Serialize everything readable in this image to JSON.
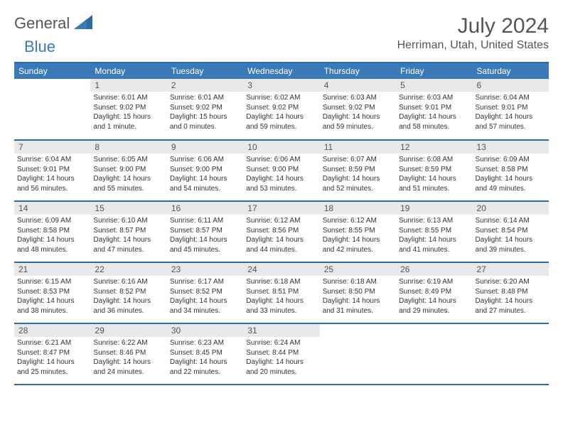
{
  "logo": {
    "text1": "General",
    "text2": "Blue"
  },
  "header": {
    "title": "July 2024",
    "location": "Herriman, Utah, United States"
  },
  "colors": {
    "header_bg": "#3a7ab8",
    "header_text": "#ffffff",
    "border": "#2b6ca3",
    "daynum_bg": "#e9e9e9",
    "text_dark": "#333333",
    "text_grey": "#555555"
  },
  "day_labels": [
    "Sunday",
    "Monday",
    "Tuesday",
    "Wednesday",
    "Thursday",
    "Friday",
    "Saturday"
  ],
  "weeks": [
    [
      null,
      {
        "n": "1",
        "sr": "Sunrise: 6:01 AM",
        "ss": "Sunset: 9:02 PM",
        "dl": "Daylight: 15 hours and 1 minute."
      },
      {
        "n": "2",
        "sr": "Sunrise: 6:01 AM",
        "ss": "Sunset: 9:02 PM",
        "dl": "Daylight: 15 hours and 0 minutes."
      },
      {
        "n": "3",
        "sr": "Sunrise: 6:02 AM",
        "ss": "Sunset: 9:02 PM",
        "dl": "Daylight: 14 hours and 59 minutes."
      },
      {
        "n": "4",
        "sr": "Sunrise: 6:03 AM",
        "ss": "Sunset: 9:02 PM",
        "dl": "Daylight: 14 hours and 59 minutes."
      },
      {
        "n": "5",
        "sr": "Sunrise: 6:03 AM",
        "ss": "Sunset: 9:01 PM",
        "dl": "Daylight: 14 hours and 58 minutes."
      },
      {
        "n": "6",
        "sr": "Sunrise: 6:04 AM",
        "ss": "Sunset: 9:01 PM",
        "dl": "Daylight: 14 hours and 57 minutes."
      }
    ],
    [
      {
        "n": "7",
        "sr": "Sunrise: 6:04 AM",
        "ss": "Sunset: 9:01 PM",
        "dl": "Daylight: 14 hours and 56 minutes."
      },
      {
        "n": "8",
        "sr": "Sunrise: 6:05 AM",
        "ss": "Sunset: 9:00 PM",
        "dl": "Daylight: 14 hours and 55 minutes."
      },
      {
        "n": "9",
        "sr": "Sunrise: 6:06 AM",
        "ss": "Sunset: 9:00 PM",
        "dl": "Daylight: 14 hours and 54 minutes."
      },
      {
        "n": "10",
        "sr": "Sunrise: 6:06 AM",
        "ss": "Sunset: 9:00 PM",
        "dl": "Daylight: 14 hours and 53 minutes."
      },
      {
        "n": "11",
        "sr": "Sunrise: 6:07 AM",
        "ss": "Sunset: 8:59 PM",
        "dl": "Daylight: 14 hours and 52 minutes."
      },
      {
        "n": "12",
        "sr": "Sunrise: 6:08 AM",
        "ss": "Sunset: 8:59 PM",
        "dl": "Daylight: 14 hours and 51 minutes."
      },
      {
        "n": "13",
        "sr": "Sunrise: 6:09 AM",
        "ss": "Sunset: 8:58 PM",
        "dl": "Daylight: 14 hours and 49 minutes."
      }
    ],
    [
      {
        "n": "14",
        "sr": "Sunrise: 6:09 AM",
        "ss": "Sunset: 8:58 PM",
        "dl": "Daylight: 14 hours and 48 minutes."
      },
      {
        "n": "15",
        "sr": "Sunrise: 6:10 AM",
        "ss": "Sunset: 8:57 PM",
        "dl": "Daylight: 14 hours and 47 minutes."
      },
      {
        "n": "16",
        "sr": "Sunrise: 6:11 AM",
        "ss": "Sunset: 8:57 PM",
        "dl": "Daylight: 14 hours and 45 minutes."
      },
      {
        "n": "17",
        "sr": "Sunrise: 6:12 AM",
        "ss": "Sunset: 8:56 PM",
        "dl": "Daylight: 14 hours and 44 minutes."
      },
      {
        "n": "18",
        "sr": "Sunrise: 6:12 AM",
        "ss": "Sunset: 8:55 PM",
        "dl": "Daylight: 14 hours and 42 minutes."
      },
      {
        "n": "19",
        "sr": "Sunrise: 6:13 AM",
        "ss": "Sunset: 8:55 PM",
        "dl": "Daylight: 14 hours and 41 minutes."
      },
      {
        "n": "20",
        "sr": "Sunrise: 6:14 AM",
        "ss": "Sunset: 8:54 PM",
        "dl": "Daylight: 14 hours and 39 minutes."
      }
    ],
    [
      {
        "n": "21",
        "sr": "Sunrise: 6:15 AM",
        "ss": "Sunset: 8:53 PM",
        "dl": "Daylight: 14 hours and 38 minutes."
      },
      {
        "n": "22",
        "sr": "Sunrise: 6:16 AM",
        "ss": "Sunset: 8:52 PM",
        "dl": "Daylight: 14 hours and 36 minutes."
      },
      {
        "n": "23",
        "sr": "Sunrise: 6:17 AM",
        "ss": "Sunset: 8:52 PM",
        "dl": "Daylight: 14 hours and 34 minutes."
      },
      {
        "n": "24",
        "sr": "Sunrise: 6:18 AM",
        "ss": "Sunset: 8:51 PM",
        "dl": "Daylight: 14 hours and 33 minutes."
      },
      {
        "n": "25",
        "sr": "Sunrise: 6:18 AM",
        "ss": "Sunset: 8:50 PM",
        "dl": "Daylight: 14 hours and 31 minutes."
      },
      {
        "n": "26",
        "sr": "Sunrise: 6:19 AM",
        "ss": "Sunset: 8:49 PM",
        "dl": "Daylight: 14 hours and 29 minutes."
      },
      {
        "n": "27",
        "sr": "Sunrise: 6:20 AM",
        "ss": "Sunset: 8:48 PM",
        "dl": "Daylight: 14 hours and 27 minutes."
      }
    ],
    [
      {
        "n": "28",
        "sr": "Sunrise: 6:21 AM",
        "ss": "Sunset: 8:47 PM",
        "dl": "Daylight: 14 hours and 25 minutes."
      },
      {
        "n": "29",
        "sr": "Sunrise: 6:22 AM",
        "ss": "Sunset: 8:46 PM",
        "dl": "Daylight: 14 hours and 24 minutes."
      },
      {
        "n": "30",
        "sr": "Sunrise: 6:23 AM",
        "ss": "Sunset: 8:45 PM",
        "dl": "Daylight: 14 hours and 22 minutes."
      },
      {
        "n": "31",
        "sr": "Sunrise: 6:24 AM",
        "ss": "Sunset: 8:44 PM",
        "dl": "Daylight: 14 hours and 20 minutes."
      },
      null,
      null,
      null
    ]
  ]
}
